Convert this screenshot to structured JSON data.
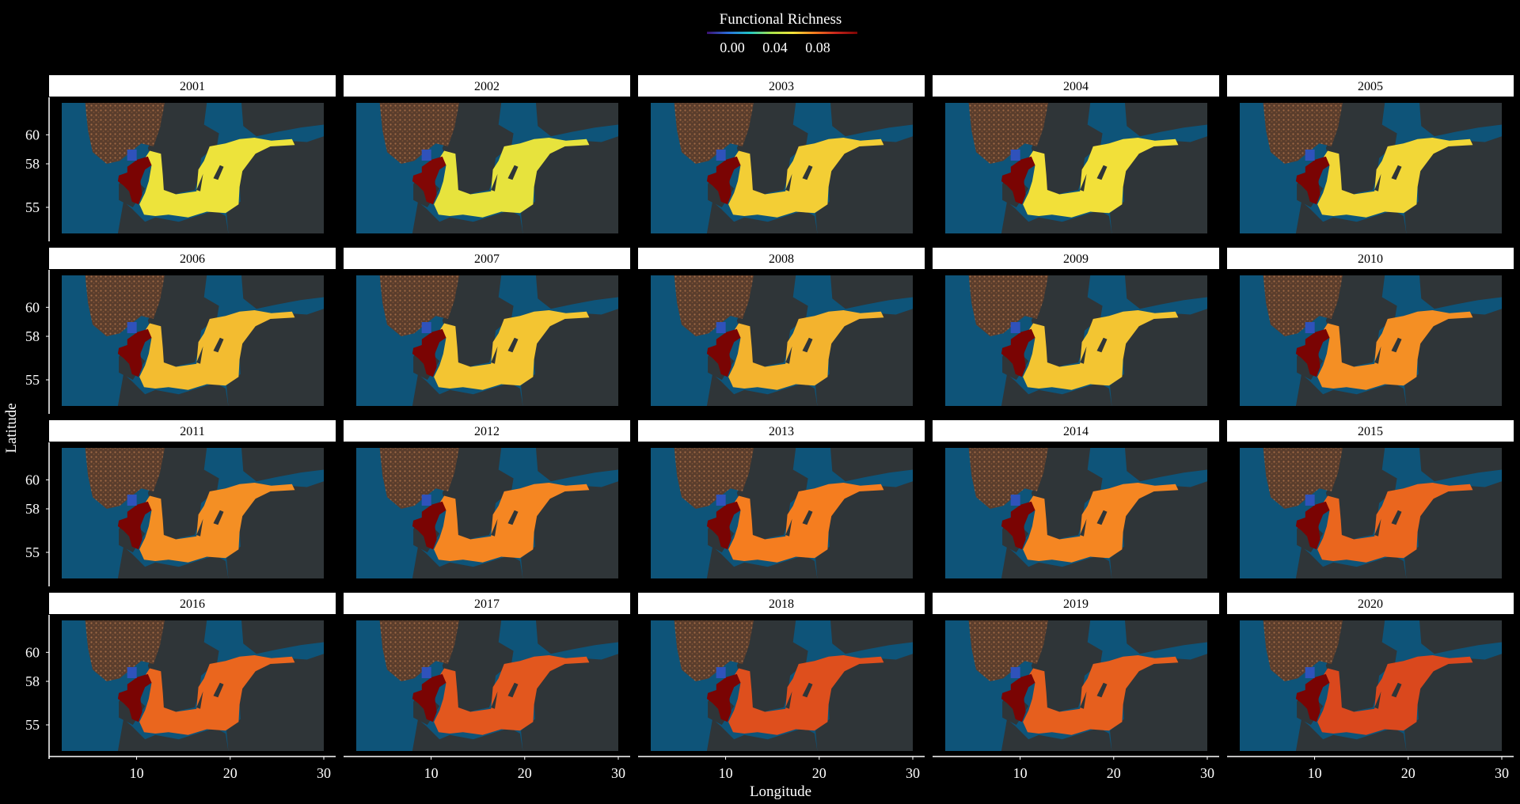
{
  "chart_data": {
    "type": "heatmap",
    "legend": {
      "title": "Functional Richness",
      "ticks": [
        0.0,
        0.04,
        0.08
      ],
      "tick_labels": [
        "0.00",
        "0.04",
        "0.08"
      ],
      "palette": [
        "#3b0f70",
        "#2a6fdb",
        "#21c6c4",
        "#a8e34b",
        "#f2e33a",
        "#f57c1f",
        "#c8251c",
        "#7a0403"
      ],
      "placement": "top"
    },
    "xlabel": "Longitude",
    "ylabel": "Latitude",
    "x_ticks": [
      10,
      20,
      30
    ],
    "y_ticks": [
      55,
      58,
      60
    ],
    "xlim": [
      2,
      30
    ],
    "ylim": [
      53.2,
      62.2
    ],
    "facet_labels": [
      "2001",
      "2002",
      "2003",
      "2004",
      "2005",
      "2006",
      "2007",
      "2008",
      "2009",
      "2010",
      "2011",
      "2012",
      "2013",
      "2014",
      "2015",
      "2016",
      "2017",
      "2018",
      "2019",
      "2020"
    ],
    "facet_layout": {
      "rows": 4,
      "cols": 5
    },
    "facet_mean_richness": [
      0.045,
      0.044,
      0.048,
      0.046,
      0.047,
      0.05,
      0.049,
      0.051,
      0.049,
      0.055,
      0.055,
      0.056,
      0.057,
      0.056,
      0.06,
      0.06,
      0.062,
      0.063,
      0.061,
      0.064
    ],
    "colors": {
      "background": "#000000",
      "sea": "#0e5479",
      "land": "#2f3538",
      "land_highland": "#8a5a3c",
      "strip": "#ffffff"
    }
  }
}
